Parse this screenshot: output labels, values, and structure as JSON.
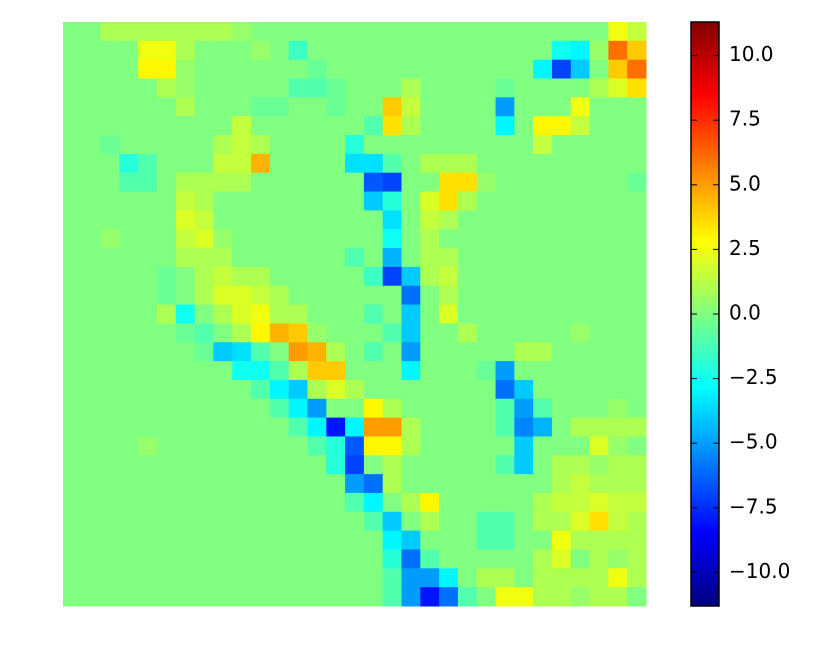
{
  "chart_data": {
    "type": "heatmap",
    "colormap": "jet",
    "z": [
      [
        0,
        0,
        1,
        1,
        1,
        1,
        1,
        1,
        1,
        0.5,
        0,
        0,
        0,
        0,
        0,
        0,
        0,
        0,
        0,
        0,
        0,
        0,
        0,
        0,
        0,
        0,
        0,
        0,
        0,
        2.5,
        1.5
      ],
      [
        0,
        0,
        0,
        0,
        2.5,
        2.5,
        1,
        0,
        0,
        0,
        0.5,
        0,
        -1.5,
        0,
        0,
        0,
        0,
        0,
        0,
        0,
        0,
        0,
        0,
        0,
        0,
        0,
        -2.5,
        -3,
        0.5,
        6,
        4
      ],
      [
        0,
        0,
        0,
        0,
        3,
        3,
        0.5,
        0,
        0,
        0,
        0,
        0,
        0,
        -0.5,
        0,
        0,
        0,
        0,
        0,
        0,
        0,
        0,
        0,
        0,
        0,
        -3,
        -7,
        -4,
        0,
        4,
        6
      ],
      [
        0,
        0,
        0,
        0,
        0,
        1,
        0.5,
        0,
        0,
        0,
        0,
        0,
        -1,
        -1,
        -0.5,
        0,
        0,
        0,
        1,
        0,
        0,
        0,
        0,
        -0.5,
        0,
        0,
        0,
        0,
        1,
        2,
        3.5
      ],
      [
        0,
        0,
        0,
        0,
        0,
        0,
        1,
        0,
        0,
        0,
        -0.5,
        -0.5,
        0,
        0,
        -0.5,
        0,
        0,
        4,
        1.5,
        0,
        0,
        0,
        0,
        -5,
        0,
        0,
        0,
        2.5,
        0,
        0,
        0
      ],
      [
        0,
        0,
        0,
        0,
        0,
        0,
        0,
        0,
        0,
        1.5,
        0,
        0,
        0,
        0,
        0,
        0,
        -1,
        3.5,
        1,
        0,
        0,
        0,
        0,
        -3,
        0,
        3,
        3,
        1.5,
        0,
        0,
        0
      ],
      [
        0,
        0,
        -0.5,
        0,
        0,
        0,
        0,
        0,
        1,
        1.5,
        1,
        0,
        0,
        0,
        0,
        -2,
        0,
        0,
        0,
        0,
        0,
        0,
        0,
        0,
        0,
        1.5,
        0,
        0,
        0,
        0,
        0
      ],
      [
        0,
        0,
        0,
        -2,
        -1,
        0,
        0,
        0,
        1.5,
        1.5,
        4.5,
        0,
        0,
        0,
        0,
        -3.5,
        -3.5,
        -1,
        0,
        1,
        1,
        1,
        0,
        0,
        0,
        0,
        0,
        0,
        0,
        0,
        0
      ],
      [
        0,
        0,
        0,
        -1,
        -1,
        0,
        1,
        1,
        1,
        1,
        0,
        0,
        0,
        0,
        0,
        0,
        -6.5,
        -7,
        0,
        0,
        3.5,
        3.5,
        0.5,
        0,
        0,
        0,
        0,
        0,
        0,
        0,
        -0.5
      ],
      [
        0,
        0,
        0,
        0,
        0,
        0,
        1.5,
        1,
        0,
        0,
        0,
        0,
        0,
        0,
        0,
        0,
        -4,
        -2,
        0,
        2,
        3.5,
        1,
        0,
        0,
        0,
        0,
        0,
        0,
        0,
        0,
        0
      ],
      [
        0,
        0,
        0,
        0,
        0,
        0,
        2,
        1.5,
        0,
        0,
        0,
        0,
        0,
        0,
        0,
        0,
        0,
        -3.5,
        0,
        1.5,
        1,
        0,
        0,
        0,
        0,
        0,
        0,
        0,
        0,
        0,
        0
      ],
      [
        0,
        0,
        0.5,
        0,
        0,
        0,
        1.5,
        2,
        0.5,
        0,
        0,
        0,
        0,
        0,
        0,
        0,
        0,
        -2.5,
        0,
        1,
        0,
        0,
        0,
        0,
        0,
        0,
        0,
        0,
        0,
        0,
        0
      ],
      [
        0,
        0,
        0,
        0,
        0,
        0,
        1,
        1,
        1,
        0,
        0,
        0,
        0,
        0,
        0,
        -1,
        0,
        -4.5,
        0,
        1,
        1,
        0,
        0,
        0,
        0,
        0,
        0,
        0,
        0,
        0,
        0
      ],
      [
        0,
        0,
        0,
        0,
        0,
        -0.5,
        0,
        1,
        1.5,
        1,
        1,
        0,
        0,
        0,
        0,
        0,
        -1.5,
        -7,
        -4,
        1,
        1.5,
        0,
        0,
        0,
        0,
        0,
        0,
        0,
        0,
        0,
        0
      ],
      [
        0,
        0,
        0,
        0,
        0,
        -0.5,
        0,
        1,
        2,
        2,
        1.5,
        1,
        0,
        0,
        0,
        0,
        0,
        0,
        -6,
        0,
        1,
        0,
        0,
        0,
        0,
        0,
        0,
        0,
        0,
        0,
        0
      ],
      [
        0,
        0,
        0,
        0,
        0,
        1,
        -2.5,
        0,
        1,
        2,
        2.5,
        1,
        1,
        0,
        0,
        0,
        -1,
        0,
        -4,
        0,
        2,
        0,
        0,
        0,
        0,
        0,
        0,
        0,
        0,
        0,
        0
      ],
      [
        0,
        0,
        0,
        0,
        0,
        0,
        -0.5,
        -1,
        0,
        1,
        3,
        4.5,
        4,
        0.5,
        0,
        0,
        0,
        -1,
        -4,
        0,
        0,
        1,
        0,
        0,
        0,
        0,
        0,
        0.5,
        0,
        0,
        0
      ],
      [
        0,
        0,
        0,
        0,
        0,
        0,
        0,
        -0.5,
        -4,
        -3.5,
        -1,
        0,
        5,
        4.5,
        1,
        0,
        -1,
        0,
        -5,
        0,
        0,
        0,
        0,
        0,
        1,
        1,
        0,
        0,
        0,
        0,
        0
      ],
      [
        0,
        0,
        0,
        0,
        0,
        0,
        0,
        0,
        0,
        -2.5,
        -2.5,
        -1,
        1,
        4,
        4,
        0,
        0,
        0,
        -3,
        0,
        0,
        0,
        -0.5,
        -5,
        0,
        0,
        0,
        0,
        0,
        0,
        0
      ],
      [
        0,
        0,
        0,
        0,
        0,
        0,
        0,
        0,
        0,
        0,
        -1,
        -3,
        -4,
        1,
        2,
        1,
        0,
        0,
        0,
        0,
        0,
        0,
        0,
        -6,
        -4,
        0,
        0,
        0,
        0,
        0,
        0
      ],
      [
        0,
        0,
        0,
        0,
        0,
        0,
        0,
        0,
        0,
        0,
        0,
        -1,
        -3,
        -5,
        0,
        0,
        3,
        1,
        0,
        0,
        0,
        0,
        0,
        -1,
        -5,
        -1,
        0,
        0,
        0,
        0.5,
        0
      ],
      [
        0,
        0,
        0,
        0,
        0,
        0,
        0,
        0,
        0,
        0,
        0,
        0,
        -1,
        -3,
        -8,
        -3,
        5,
        5,
        1,
        0,
        0,
        0,
        0,
        -1,
        -5.5,
        -4.5,
        0,
        1,
        1,
        1,
        1
      ],
      [
        0,
        0,
        0,
        0,
        0.5,
        0,
        0,
        0,
        0,
        0,
        0,
        0,
        0,
        -1,
        -2,
        -6.5,
        3,
        3,
        1,
        0,
        0,
        0,
        0,
        0,
        -4,
        0,
        0,
        0,
        2,
        0.5,
        0
      ],
      [
        0,
        0,
        0,
        0,
        0,
        0,
        0,
        0,
        0,
        0,
        0,
        0,
        0,
        0,
        -2,
        -7,
        0,
        1,
        0,
        0,
        0,
        0,
        0,
        -1,
        -4,
        0,
        1,
        1,
        0.5,
        1,
        1
      ],
      [
        0,
        0,
        0,
        0,
        0,
        0,
        0,
        0,
        0,
        0,
        0,
        0,
        0,
        0,
        0,
        -5,
        -6,
        1,
        0,
        0,
        0,
        0,
        0,
        0,
        0,
        0,
        1,
        1.5,
        1,
        1,
        1
      ],
      [
        0,
        0,
        0,
        0,
        0,
        0,
        0,
        0,
        0,
        0,
        0,
        0,
        0,
        0,
        0,
        -1,
        -3,
        0,
        1,
        3,
        0,
        0,
        0,
        0,
        0,
        1,
        1.5,
        1.5,
        2,
        1.5,
        1.5
      ],
      [
        0,
        0,
        0,
        0,
        0,
        0,
        0,
        0,
        0,
        0,
        0,
        0,
        0,
        0,
        0,
        0,
        -1,
        -4,
        0,
        1,
        0,
        0,
        -1,
        -1,
        0,
        1,
        1,
        2,
        3.5,
        1.5,
        1
      ],
      [
        0,
        0,
        0,
        0,
        0,
        0,
        0,
        0,
        0,
        0,
        0,
        0,
        0,
        0,
        0,
        0,
        0,
        -3,
        -4,
        0,
        0,
        0,
        -1,
        -1,
        0,
        0,
        2.5,
        1,
        1,
        1,
        1
      ],
      [
        0,
        0,
        0,
        0,
        0,
        0,
        0,
        0,
        0,
        0,
        0,
        0,
        0,
        0,
        0,
        0,
        0,
        -2,
        -6,
        -1,
        0,
        0,
        0,
        0,
        0,
        1,
        2,
        0,
        1,
        0.5,
        1
      ],
      [
        0,
        0,
        0,
        0,
        0,
        0,
        0,
        0,
        0,
        0,
        0,
        0,
        0,
        0,
        0,
        0,
        0,
        -1,
        -5,
        -5,
        -3,
        0,
        1,
        1,
        0,
        1,
        1,
        1,
        1,
        2.5,
        1
      ],
      [
        0,
        0,
        0,
        0,
        0,
        0,
        0,
        0,
        0,
        0,
        0,
        0,
        0,
        0,
        0,
        0,
        0,
        -1,
        -5,
        -8,
        -6,
        -1,
        0,
        2.5,
        2.5,
        1,
        1,
        0.5,
        1,
        1,
        0
      ]
    ],
    "colorbar": {
      "lim": [
        -11.3,
        11.3
      ],
      "ticks": [
        {
          "value": 10,
          "label": "10.0"
        },
        7.5,
        {
          "value": 5,
          "label": "5.0"
        },
        2.5,
        {
          "value": 0,
          "label": "0.0"
        },
        {
          "value": -2.5,
          "label": "−2.5"
        },
        {
          "value": -5,
          "label": "−5.0"
        },
        {
          "value": -7.5,
          "label": "−7.5"
        },
        {
          "value": -10,
          "label": "−10.0"
        }
      ]
    }
  }
}
